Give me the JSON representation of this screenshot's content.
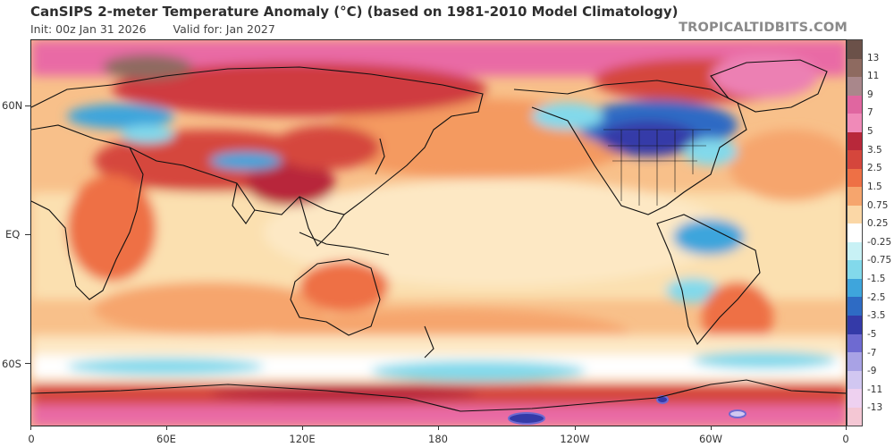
{
  "header": {
    "title": "CanSIPS 2-meter Temperature Anomaly (°C) (based on 1981-2010 Model Climatology)",
    "init": "Init: 00z Jan 31 2026",
    "valid": "Valid for: Jan 2027",
    "brand": "TROPICALTIDBITS.COM"
  },
  "axes": {
    "lat_labels": [
      "60N",
      "EQ",
      "60S"
    ],
    "lon_labels": [
      "0",
      "60E",
      "120E",
      "180",
      "120W",
      "60W",
      "0"
    ]
  },
  "colorbar": {
    "labels": [
      "13",
      "11",
      "9",
      "7",
      "5",
      "3.5",
      "2.5",
      "1.5",
      "0.75",
      "0.25",
      "-0.25",
      "-0.75",
      "-1.5",
      "-2.5",
      "-3.5",
      "-5",
      "-7",
      "-9",
      "-11",
      "-13"
    ],
    "colors": [
      "#6b5149",
      "#8e6a60",
      "#a9878b",
      "#e066a0",
      "#f08ab8",
      "#b8283a",
      "#d5463c",
      "#ee7045",
      "#f6a56d",
      "#fbd7a6",
      "#ffffff",
      "#c8f1f5",
      "#82d9eb",
      "#3ea5dc",
      "#2e6bc4",
      "#343aa8",
      "#6e6ad1",
      "#a8a2e5",
      "#d1c7f1",
      "#eed1f0",
      "#f4c7d4"
    ]
  },
  "map_features": {
    "regions": [
      {
        "name": "canada-cold-anomaly",
        "value": "-2.5"
      },
      {
        "name": "amazon-cold-anomaly",
        "value": "-1.5"
      },
      {
        "name": "southern-ocean-cold-band",
        "value": "-0.75"
      },
      {
        "name": "arctic-warm-anomaly",
        "value": "7"
      },
      {
        "name": "antarctic-warm-anomaly",
        "value": "3.5"
      },
      {
        "name": "tibet-warm-anomaly",
        "value": "2.5"
      }
    ]
  }
}
